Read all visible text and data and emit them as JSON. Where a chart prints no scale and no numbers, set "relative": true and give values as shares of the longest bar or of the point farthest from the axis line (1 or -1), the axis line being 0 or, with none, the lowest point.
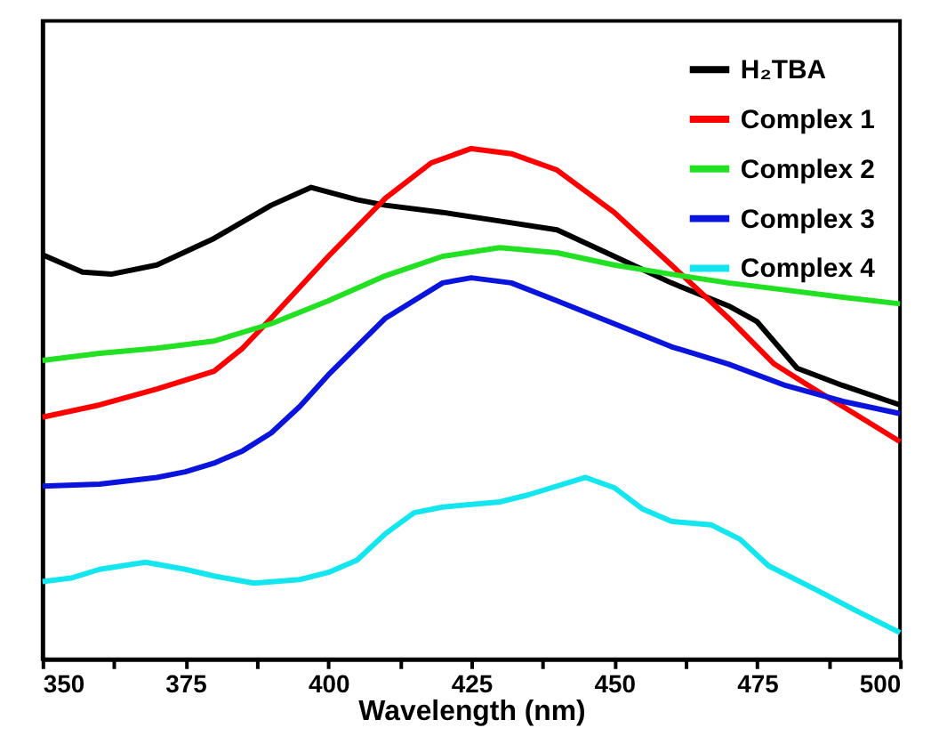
{
  "chart_data": {
    "type": "line",
    "xlabel": "Wavelength (nm)",
    "relative": true,
    "xlim": [
      350,
      500
    ],
    "xticks": [
      350,
      {
        "value": 362.5,
        "label": null
      },
      375,
      {
        "value": 387.5,
        "label": null
      },
      400,
      {
        "value": 412.5,
        "label": null
      },
      425,
      {
        "value": 437.5,
        "label": null
      },
      450,
      {
        "value": 462.5,
        "label": null
      },
      475,
      {
        "value": 487.5,
        "label": null
      },
      500
    ],
    "legend": "top right",
    "grid": false,
    "marker": "none",
    "line_style": "solid",
    "series": [
      {
        "name": "H₂TBA",
        "color": "#000000",
        "x": [
          350,
          357,
          362,
          370,
          380,
          390,
          397,
          405,
          410,
          420,
          430,
          440,
          450,
          460,
          470,
          475,
          482,
          490,
          500
        ],
        "values": [
          0.792,
          0.758,
          0.754,
          0.772,
          0.824,
          0.889,
          0.924,
          0.9,
          0.889,
          0.875,
          0.858,
          0.841,
          0.789,
          0.737,
          0.692,
          0.661,
          0.57,
          0.536,
          0.498
        ]
      },
      {
        "name": "Complex 1",
        "color": "#ff0000",
        "x": [
          350,
          360,
          370,
          380,
          385,
          390,
          400,
          410,
          418,
          425,
          432,
          440,
          450,
          460,
          470,
          478,
          485,
          490,
          500
        ],
        "values": [
          0.474,
          0.498,
          0.529,
          0.564,
          0.609,
          0.668,
          0.789,
          0.903,
          0.972,
          1.0,
          0.99,
          0.958,
          0.875,
          0.772,
          0.668,
          0.578,
          0.529,
          0.495,
          0.426
        ]
      },
      {
        "name": "Complex 2",
        "color": "#22e022",
        "x": [
          350,
          360,
          370,
          380,
          390,
          400,
          410,
          420,
          430,
          440,
          450,
          460,
          470,
          480,
          490,
          500
        ],
        "values": [
          0.585,
          0.599,
          0.609,
          0.623,
          0.657,
          0.702,
          0.751,
          0.789,
          0.806,
          0.796,
          0.772,
          0.754,
          0.737,
          0.723,
          0.709,
          0.696
        ]
      },
      {
        "name": "Complex 3",
        "color": "#0a14dc",
        "x": [
          350,
          360,
          370,
          375,
          380,
          385,
          390,
          395,
          400,
          410,
          420,
          425,
          432,
          440,
          450,
          460,
          470,
          480,
          490,
          500
        ],
        "values": [
          0.339,
          0.343,
          0.356,
          0.367,
          0.384,
          0.408,
          0.443,
          0.495,
          0.557,
          0.668,
          0.737,
          0.747,
          0.737,
          0.702,
          0.657,
          0.612,
          0.578,
          0.536,
          0.505,
          0.481
        ]
      },
      {
        "name": "Complex 4",
        "color": "#14e6f0",
        "x": [
          350,
          355,
          360,
          368,
          375,
          380,
          387,
          395,
          400,
          405,
          410,
          415,
          420,
          430,
          435,
          445,
          450,
          455,
          460,
          467,
          472,
          477,
          485,
          492,
          500
        ],
        "values": [
          0.152,
          0.159,
          0.176,
          0.19,
          0.176,
          0.163,
          0.149,
          0.156,
          0.17,
          0.194,
          0.246,
          0.287,
          0.298,
          0.308,
          0.322,
          0.356,
          0.336,
          0.294,
          0.27,
          0.263,
          0.235,
          0.183,
          0.138,
          0.097,
          0.052
        ]
      }
    ]
  }
}
